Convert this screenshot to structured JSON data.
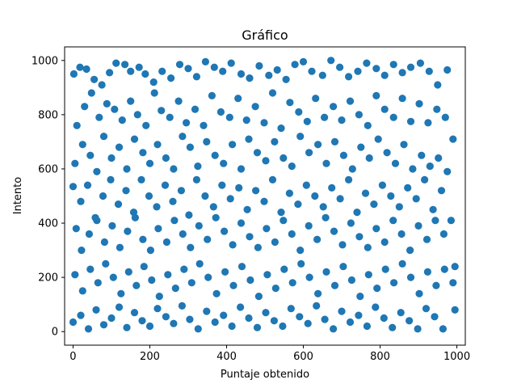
{
  "chart_data": {
    "type": "scatter",
    "title": "Gráfico",
    "xlabel": "Puntaje obtenido",
    "ylabel": "Intento",
    "xlim": [
      -22,
      1022
    ],
    "ylim": [
      -50,
      1050
    ],
    "xticks": [
      0,
      200,
      400,
      600,
      800,
      1000
    ],
    "yticks": [
      0,
      200,
      400,
      600,
      800,
      1000
    ],
    "grid": false,
    "color": "#1f77b4",
    "series": [
      {
        "points": [
          [
            2,
            950
          ],
          [
            18,
            975
          ],
          [
            35,
            968
          ],
          [
            55,
            930
          ],
          [
            75,
            910
          ],
          [
            95,
            955
          ],
          [
            112,
            990
          ],
          [
            135,
            985
          ],
          [
            150,
            960
          ],
          [
            172,
            975
          ],
          [
            188,
            950
          ],
          [
            210,
            920
          ],
          [
            232,
            960
          ],
          [
            255,
            935
          ],
          [
            278,
            985
          ],
          [
            300,
            970
          ],
          [
            322,
            940
          ],
          [
            345,
            995
          ],
          [
            368,
            975
          ],
          [
            390,
            960
          ],
          [
            412,
            990
          ],
          [
            438,
            950
          ],
          [
            460,
            935
          ],
          [
            485,
            980
          ],
          [
            510,
            945
          ],
          [
            532,
            965
          ],
          [
            555,
            930
          ],
          [
            578,
            985
          ],
          [
            600,
            995
          ],
          [
            622,
            960
          ],
          [
            650,
            945
          ],
          [
            672,
            1000
          ],
          [
            695,
            975
          ],
          [
            718,
            940
          ],
          [
            742,
            960
          ],
          [
            765,
            990
          ],
          [
            790,
            970
          ],
          [
            812,
            945
          ],
          [
            835,
            985
          ],
          [
            858,
            955
          ],
          [
            880,
            975
          ],
          [
            905,
            990
          ],
          [
            928,
            960
          ],
          [
            950,
            910
          ],
          [
            975,
            965
          ],
          [
            10,
            760
          ],
          [
            30,
            830
          ],
          [
            48,
            880
          ],
          [
            68,
            790
          ],
          [
            88,
            840
          ],
          [
            108,
            820
          ],
          [
            128,
            780
          ],
          [
            150,
            850
          ],
          [
            168,
            800
          ],
          [
            190,
            760
          ],
          [
            212,
            880
          ],
          [
            230,
            815
          ],
          [
            252,
            790
          ],
          [
            275,
            850
          ],
          [
            295,
            770
          ],
          [
            318,
            820
          ],
          [
            340,
            760
          ],
          [
            362,
            870
          ],
          [
            385,
            810
          ],
          [
            408,
            790
          ],
          [
            430,
            860
          ],
          [
            452,
            780
          ],
          [
            475,
            830
          ],
          [
            498,
            770
          ],
          [
            520,
            880
          ],
          [
            542,
            750
          ],
          [
            565,
            845
          ],
          [
            588,
            810
          ],
          [
            610,
            775
          ],
          [
            632,
            860
          ],
          [
            655,
            790
          ],
          [
            678,
            830
          ],
          [
            700,
            780
          ],
          [
            722,
            850
          ],
          [
            745,
            800
          ],
          [
            768,
            760
          ],
          [
            790,
            870
          ],
          [
            812,
            820
          ],
          [
            835,
            790
          ],
          [
            858,
            860
          ],
          [
            880,
            775
          ],
          [
            902,
            840
          ],
          [
            925,
            770
          ],
          [
            948,
            820
          ],
          [
            970,
            790
          ],
          [
            990,
            710
          ],
          [
            5,
            620
          ],
          [
            25,
            690
          ],
          [
            45,
            650
          ],
          [
            62,
            590
          ],
          [
            80,
            720
          ],
          [
            100,
            640
          ],
          [
            120,
            680
          ],
          [
            140,
            600
          ],
          [
            160,
            710
          ],
          [
            182,
            660
          ],
          [
            200,
            620
          ],
          [
            220,
            690
          ],
          [
            242,
            640
          ],
          [
            262,
            600
          ],
          [
            285,
            720
          ],
          [
            305,
            680
          ],
          [
            325,
            610
          ],
          [
            348,
            700
          ],
          [
            370,
            650
          ],
          [
            392,
            620
          ],
          [
            415,
            690
          ],
          [
            438,
            600
          ],
          [
            458,
            710
          ],
          [
            480,
            660
          ],
          [
            502,
            630
          ],
          [
            525,
            700
          ],
          [
            548,
            640
          ],
          [
            570,
            610
          ],
          [
            592,
            720
          ],
          [
            615,
            660
          ],
          [
            638,
            690
          ],
          [
            660,
            620
          ],
          [
            682,
            700
          ],
          [
            705,
            650
          ],
          [
            728,
            600
          ],
          [
            750,
            680
          ],
          [
            772,
            640
          ],
          [
            795,
            710
          ],
          [
            818,
            660
          ],
          [
            840,
            620
          ],
          [
            862,
            690
          ],
          [
            885,
            600
          ],
          [
            908,
            650
          ],
          [
            930,
            610
          ],
          [
            952,
            640
          ],
          [
            975,
            590
          ],
          [
            0,
            535
          ],
          [
            20,
            480
          ],
          [
            38,
            540
          ],
          [
            58,
            420
          ],
          [
            78,
            500
          ],
          [
            98,
            560
          ],
          [
            118,
            470
          ],
          [
            138,
            520
          ],
          [
            158,
            440
          ],
          [
            178,
            560
          ],
          [
            198,
            500
          ],
          [
            218,
            460
          ],
          [
            240,
            540
          ],
          [
            260,
            480
          ],
          [
            282,
            520
          ],
          [
            302,
            430
          ],
          [
            322,
            560
          ],
          [
            344,
            500
          ],
          [
            366,
            460
          ],
          [
            388,
            540
          ],
          [
            410,
            490
          ],
          [
            432,
            530
          ],
          [
            454,
            450
          ],
          [
            476,
            520
          ],
          [
            498,
            480
          ],
          [
            520,
            560
          ],
          [
            542,
            440
          ],
          [
            564,
            510
          ],
          [
            586,
            470
          ],
          [
            608,
            540
          ],
          [
            630,
            500
          ],
          [
            652,
            460
          ],
          [
            674,
            530
          ],
          [
            696,
            490
          ],
          [
            718,
            560
          ],
          [
            740,
            440
          ],
          [
            762,
            510
          ],
          [
            784,
            470
          ],
          [
            806,
            540
          ],
          [
            828,
            500
          ],
          [
            850,
            460
          ],
          [
            872,
            530
          ],
          [
            894,
            490
          ],
          [
            916,
            560
          ],
          [
            938,
            450
          ],
          [
            960,
            520
          ],
          [
            985,
            410
          ],
          [
            8,
            380
          ],
          [
            22,
            300
          ],
          [
            42,
            360
          ],
          [
            62,
            410
          ],
          [
            82,
            330
          ],
          [
            102,
            390
          ],
          [
            122,
            310
          ],
          [
            142,
            370
          ],
          [
            162,
            420
          ],
          [
            182,
            340
          ],
          [
            202,
            300
          ],
          [
            222,
            380
          ],
          [
            244,
            330
          ],
          [
            264,
            410
          ],
          [
            286,
            360
          ],
          [
            306,
            310
          ],
          [
            328,
            390
          ],
          [
            350,
            340
          ],
          [
            372,
            420
          ],
          [
            394,
            370
          ],
          [
            416,
            320
          ],
          [
            438,
            400
          ],
          [
            460,
            350
          ],
          [
            482,
            310
          ],
          [
            504,
            380
          ],
          [
            526,
            330
          ],
          [
            548,
            410
          ],
          [
            570,
            360
          ],
          [
            592,
            300
          ],
          [
            614,
            390
          ],
          [
            636,
            340
          ],
          [
            658,
            420
          ],
          [
            680,
            370
          ],
          [
            702,
            320
          ],
          [
            724,
            400
          ],
          [
            746,
            350
          ],
          [
            768,
            310
          ],
          [
            790,
            380
          ],
          [
            812,
            330
          ],
          [
            834,
            410
          ],
          [
            856,
            360
          ],
          [
            878,
            300
          ],
          [
            900,
            390
          ],
          [
            922,
            340
          ],
          [
            944,
            410
          ],
          [
            966,
            360
          ],
          [
            995,
            240
          ],
          [
            5,
            210
          ],
          [
            25,
            150
          ],
          [
            45,
            230
          ],
          [
            65,
            180
          ],
          [
            85,
            250
          ],
          [
            105,
            200
          ],
          [
            125,
            140
          ],
          [
            145,
            220
          ],
          [
            165,
            170
          ],
          [
            185,
            240
          ],
          [
            205,
            190
          ],
          [
            225,
            130
          ],
          [
            247,
            210
          ],
          [
            267,
            160
          ],
          [
            289,
            230
          ],
          [
            309,
            180
          ],
          [
            330,
            250
          ],
          [
            352,
            200
          ],
          [
            374,
            140
          ],
          [
            396,
            220
          ],
          [
            418,
            170
          ],
          [
            440,
            240
          ],
          [
            462,
            190
          ],
          [
            484,
            130
          ],
          [
            506,
            210
          ],
          [
            528,
            160
          ],
          [
            550,
            230
          ],
          [
            572,
            180
          ],
          [
            594,
            250
          ],
          [
            616,
            200
          ],
          [
            638,
            140
          ],
          [
            660,
            220
          ],
          [
            682,
            170
          ],
          [
            704,
            240
          ],
          [
            726,
            190
          ],
          [
            748,
            130
          ],
          [
            770,
            210
          ],
          [
            792,
            160
          ],
          [
            814,
            230
          ],
          [
            836,
            180
          ],
          [
            858,
            250
          ],
          [
            880,
            200
          ],
          [
            902,
            140
          ],
          [
            924,
            220
          ],
          [
            946,
            170
          ],
          [
            968,
            230
          ],
          [
            990,
            180
          ],
          [
            0,
            35
          ],
          [
            20,
            60
          ],
          [
            40,
            10
          ],
          [
            60,
            80
          ],
          [
            80,
            25
          ],
          [
            100,
            50
          ],
          [
            120,
            90
          ],
          [
            140,
            15
          ],
          [
            160,
            70
          ],
          [
            180,
            40
          ],
          [
            200,
            20
          ],
          [
            220,
            85
          ],
          [
            242,
            55
          ],
          [
            262,
            30
          ],
          [
            284,
            95
          ],
          [
            304,
            45
          ],
          [
            326,
            10
          ],
          [
            348,
            75
          ],
          [
            370,
            35
          ],
          [
            392,
            60
          ],
          [
            414,
            20
          ],
          [
            436,
            90
          ],
          [
            458,
            50
          ],
          [
            480,
            15
          ],
          [
            502,
            70
          ],
          [
            524,
            40
          ],
          [
            546,
            20
          ],
          [
            568,
            85
          ],
          [
            590,
            55
          ],
          [
            612,
            30
          ],
          [
            634,
            95
          ],
          [
            656,
            45
          ],
          [
            678,
            10
          ],
          [
            700,
            75
          ],
          [
            722,
            35
          ],
          [
            744,
            60
          ],
          [
            766,
            20
          ],
          [
            788,
            90
          ],
          [
            810,
            50
          ],
          [
            832,
            15
          ],
          [
            854,
            70
          ],
          [
            876,
            40
          ],
          [
            898,
            10
          ],
          [
            920,
            85
          ],
          [
            942,
            55
          ],
          [
            964,
            10
          ],
          [
            995,
            80
          ]
        ]
      }
    ]
  }
}
